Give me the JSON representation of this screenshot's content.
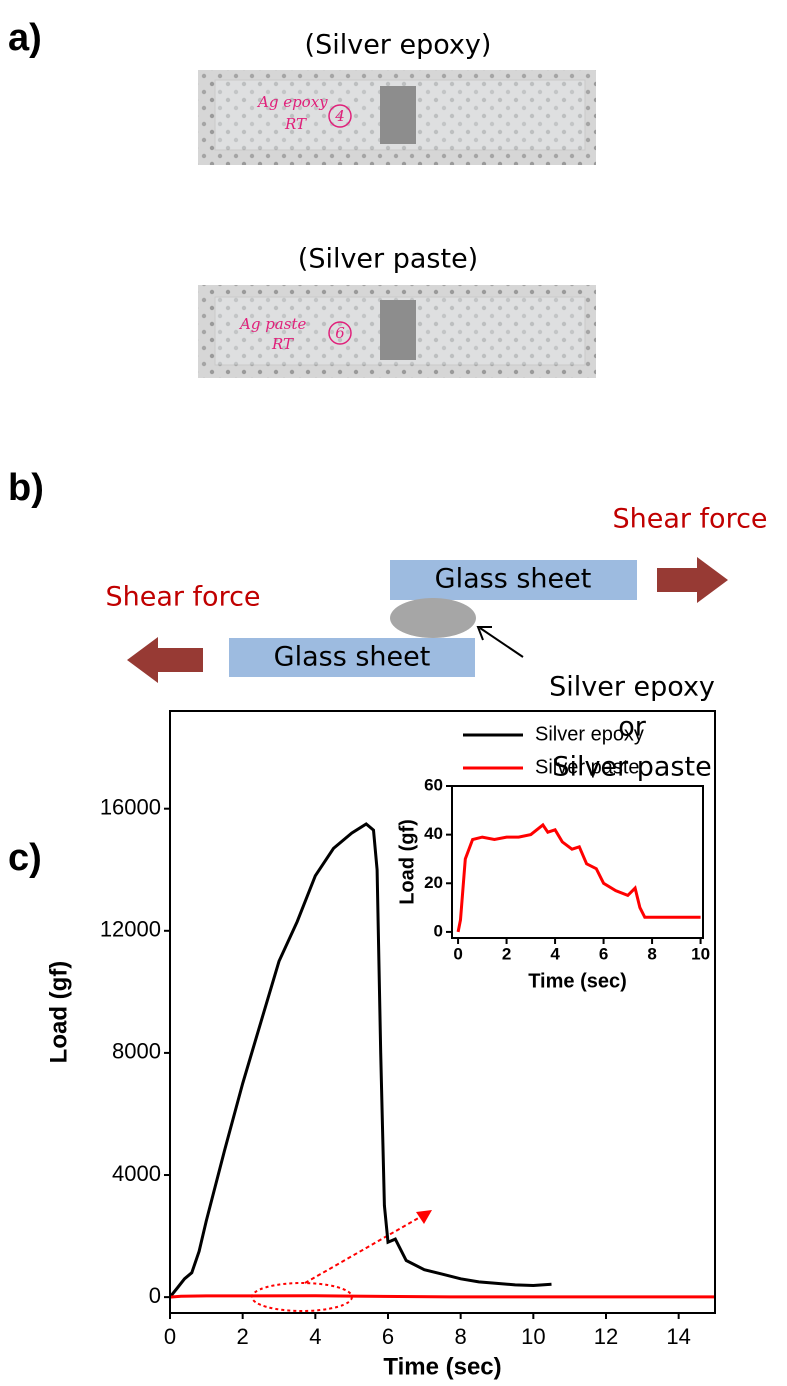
{
  "panel_a": {
    "label": "a)",
    "photos": [
      {
        "caption": "(Silver epoxy)",
        "handwriting": [
          "Ag epoxy",
          "RT",
          "4"
        ]
      },
      {
        "caption": "(Silver paste)",
        "handwriting": [
          "Ag paste",
          "RT",
          "6"
        ]
      }
    ]
  },
  "panel_b": {
    "label": "b)",
    "forces": [
      "Shear force",
      "Shear force"
    ],
    "sheets": [
      "Glass sheet",
      "Glass sheet"
    ],
    "adhesive": [
      "Silver epoxy",
      "or",
      "Silver paste"
    ]
  },
  "panel_c": {
    "label": "c)"
  },
  "chart_data": [
    {
      "type": "line",
      "xlabel": "Time (sec)",
      "ylabel": "Load (gf)",
      "xlim": [
        0,
        15
      ],
      "ylim": [
        -520,
        19200
      ],
      "xticks": [
        0,
        2,
        4,
        6,
        8,
        10,
        12,
        14
      ],
      "yticks": [
        0,
        4000,
        8000,
        12000,
        16000
      ],
      "legend": "upper right",
      "series": [
        {
          "name": "Silver epoxy",
          "color": "#000000",
          "x": [
            0,
            0.2,
            0.4,
            0.6,
            0.8,
            1,
            1.5,
            2,
            2.5,
            3,
            3.5,
            4,
            4.5,
            5,
            5.4,
            5.6,
            5.7,
            5.8,
            5.9,
            6,
            6.2,
            6.5,
            7,
            7.5,
            8,
            8.5,
            9,
            9.5,
            10,
            10.5
          ],
          "values": [
            0,
            300,
            600,
            800,
            1500,
            2500,
            4800,
            7000,
            9000,
            11000,
            12300,
            13800,
            14700,
            15200,
            15500,
            15300,
            14000,
            8000,
            3000,
            1800,
            1900,
            1200,
            900,
            750,
            600,
            500,
            450,
            400,
            380,
            420
          ]
        },
        {
          "name": "Silver paste",
          "color": "#ff0000",
          "x": [
            0,
            0.3,
            1,
            4,
            5,
            7.7,
            10,
            15
          ],
          "values": [
            0,
            30,
            39,
            42,
            35,
            6,
            6,
            6
          ]
        }
      ]
    },
    {
      "type": "line",
      "xlabel": "Time (sec)",
      "ylabel": "Load (gf)",
      "xlim": [
        -0.25,
        10.1
      ],
      "ylim": [
        -2.5,
        60
      ],
      "xticks": [
        0,
        2,
        4,
        6,
        8,
        10
      ],
      "yticks": [
        0,
        20,
        40,
        60
      ],
      "series": [
        {
          "color": "#ff0000",
          "x": [
            0,
            0.1,
            0.3,
            0.6,
            1,
            1.5,
            2,
            2.5,
            3,
            3.5,
            3.7,
            4,
            4.3,
            4.7,
            5,
            5.3,
            5.7,
            6,
            6.5,
            7,
            7.3,
            7.5,
            7.7,
            8,
            9,
            10
          ],
          "values": [
            0,
            5,
            30,
            38,
            39,
            38,
            39,
            39,
            40,
            44,
            41,
            42,
            37,
            34,
            35,
            28,
            26,
            20,
            17,
            15,
            18,
            10,
            6,
            6,
            6,
            6
          ]
        }
      ]
    }
  ]
}
